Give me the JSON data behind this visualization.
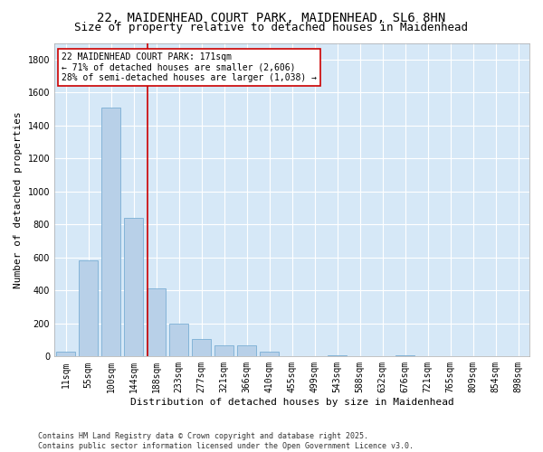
{
  "title_line1": "22, MAIDENHEAD COURT PARK, MAIDENHEAD, SL6 8HN",
  "title_line2": "Size of property relative to detached houses in Maidenhead",
  "xlabel": "Distribution of detached houses by size in Maidenhead",
  "ylabel": "Number of detached properties",
  "footnote": "Contains HM Land Registry data © Crown copyright and database right 2025.\nContains public sector information licensed under the Open Government Licence v3.0.",
  "bar_labels": [
    "11sqm",
    "55sqm",
    "100sqm",
    "144sqm",
    "188sqm",
    "233sqm",
    "277sqm",
    "321sqm",
    "366sqm",
    "410sqm",
    "455sqm",
    "499sqm",
    "543sqm",
    "588sqm",
    "632sqm",
    "676sqm",
    "721sqm",
    "765sqm",
    "809sqm",
    "854sqm",
    "898sqm"
  ],
  "bar_values": [
    30,
    580,
    1510,
    840,
    410,
    200,
    105,
    70,
    65,
    30,
    0,
    0,
    5,
    0,
    0,
    5,
    0,
    0,
    0,
    0,
    0
  ],
  "bar_color": "#b8d0e8",
  "bar_edge_color": "#7aaed4",
  "redline_color": "#cc0000",
  "annotation_text": "22 MAIDENHEAD COURT PARK: 171sqm\n← 71% of detached houses are smaller (2,606)\n28% of semi-detached houses are larger (1,038) →",
  "annotation_box_color": "#ffffff",
  "annotation_box_edge": "#cc0000",
  "ylim": [
    0,
    1900
  ],
  "yticks": [
    0,
    200,
    400,
    600,
    800,
    1000,
    1200,
    1400,
    1600,
    1800
  ],
  "fig_bg": "#ffffff",
  "plot_bg": "#d6e8f7",
  "grid_color": "#ffffff",
  "title_fontsize": 10,
  "subtitle_fontsize": 9,
  "axis_label_fontsize": 8,
  "tick_fontsize": 7,
  "footnote_fontsize": 6
}
